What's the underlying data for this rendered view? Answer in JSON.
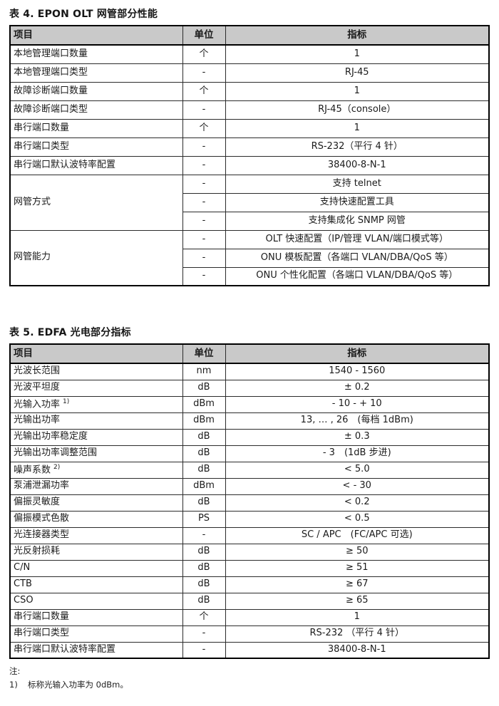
{
  "table4": {
    "title": "表 4. EPON OLT 网管部分性能",
    "headers": [
      "项目",
      "单位",
      "指标"
    ],
    "rows": [
      {
        "item": "本地管理端口数量",
        "unit": "个",
        "spec": "1"
      },
      {
        "item": "本地管理端口类型",
        "unit": "-",
        "spec": "RJ-45"
      },
      {
        "item": "故障诊断端口数量",
        "unit": "个",
        "spec": "1"
      },
      {
        "item": "故障诊断端口类型",
        "unit": "-",
        "spec": "RJ-45（console）"
      },
      {
        "item": "串行端口数量",
        "unit": "个",
        "spec": "1"
      },
      {
        "item": "串行端口类型",
        "unit": "-",
        "spec": "RS-232（平行 4 针）"
      },
      {
        "item": "串行端口默认波特率配置",
        "unit": "-",
        "spec": "38400-8-N-1"
      },
      {
        "item": "网管方式",
        "unit": "-",
        "spec": "支持 telnet"
      },
      {
        "unit": "-",
        "spec": "支持快速配置工具"
      },
      {
        "unit": "-",
        "spec": "支持集成化 SNMP 网管"
      },
      {
        "item": "网管能力",
        "unit": "-",
        "spec": "OLT 快速配置（IP/管理 VLAN/端口模式等）"
      },
      {
        "unit": "-",
        "spec": "ONU 模板配置（各端口 VLAN/DBA/QoS 等）"
      },
      {
        "unit": "-",
        "spec": "ONU 个性化配置（各端口 VLAN/DBA/QoS 等）"
      }
    ]
  },
  "table5": {
    "title": "表 5. EDFA 光电部分指标",
    "headers": [
      "项目",
      "单位",
      "指标"
    ],
    "rows": [
      {
        "item": "光波长范围",
        "unit": "nm",
        "spec": "1540 - 1560"
      },
      {
        "item": "光波平坦度",
        "unit": "dB",
        "spec": "± 0.2"
      },
      {
        "item": "光输入功率",
        "sup": "1)",
        "unit": "dBm",
        "spec": "- 10 - + 10"
      },
      {
        "item": "光输出功率",
        "unit": "dBm",
        "spec": "13, … , 26　(每档 1dBm)"
      },
      {
        "item": "光输出功率稳定度",
        "unit": "dB",
        "spec": "± 0.3"
      },
      {
        "item": "光输出功率调整范围",
        "unit": "dB",
        "spec": "- 3　(1dB 步进)"
      },
      {
        "item": "噪声系数",
        "sup": "2)",
        "unit": "dB",
        "spec": "< 5.0"
      },
      {
        "item": "泵浦泄漏功率",
        "unit": "dBm",
        "spec": "< - 30"
      },
      {
        "item": "偏振灵敏度",
        "unit": "dB",
        "spec": "< 0.2"
      },
      {
        "item": "偏振模式色散",
        "unit": "PS",
        "spec": "< 0.5"
      },
      {
        "item": "光连接器类型",
        "unit": "-",
        "spec": "SC / APC　(FC/APC 可选)"
      },
      {
        "item": "光反射损耗",
        "unit": "dB",
        "spec": "≥ 50"
      },
      {
        "item": "C/N",
        "unit": "dB",
        "spec": "≥ 51"
      },
      {
        "item": "CTB",
        "unit": "dB",
        "spec": "≥ 67"
      },
      {
        "item": "CSO",
        "unit": "dB",
        "spec": "≥ 65"
      },
      {
        "item": "串行端口数量",
        "unit": "个",
        "spec": "1"
      },
      {
        "item": "串行端口类型",
        "unit": "-",
        "spec": "RS-232 （平行 4 针）"
      },
      {
        "item": "串行端口默认波特率配置",
        "unit": "-",
        "spec": "38400-8-N-1"
      }
    ]
  },
  "notes": {
    "label": "注:",
    "items": [
      {
        "marker": "1)",
        "text": "标称光输入功率为 0dBm。"
      }
    ]
  }
}
